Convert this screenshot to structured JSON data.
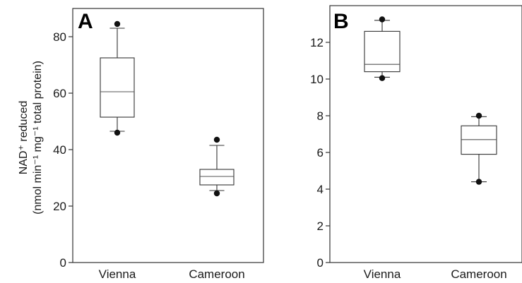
{
  "chart_data": [
    {
      "type": "box",
      "panel_label": "A",
      "categories": [
        "Vienna",
        "Cameroon"
      ],
      "ylabel_line1": "NAD⁺ reduced",
      "ylabel_line2": "(nmol min⁻¹ mg⁻¹ total protein)",
      "ylim": [
        0,
        90
      ],
      "yticks": [
        0,
        20,
        40,
        60,
        80
      ],
      "boxes": [
        {
          "category": "Vienna",
          "whisker_low": 46.5,
          "q1": 51.5,
          "median": 60.5,
          "q3": 72.5,
          "whisker_high": 83,
          "outliers": [
            46,
            84.5
          ]
        },
        {
          "category": "Cameroon",
          "whisker_low": 25.5,
          "q1": 27.5,
          "median": 30.5,
          "q3": 33,
          "whisker_high": 41.5,
          "outliers": [
            24.5,
            43.5
          ]
        }
      ]
    },
    {
      "type": "box",
      "panel_label": "B",
      "categories": [
        "Vienna",
        "Cameroon"
      ],
      "ylim": [
        0,
        14
      ],
      "yticks": [
        0,
        2,
        4,
        6,
        8,
        10,
        12
      ],
      "boxes": [
        {
          "category": "Vienna",
          "whisker_low": 10.1,
          "q1": 10.4,
          "median": 10.8,
          "q3": 12.6,
          "whisker_high": 13.2,
          "outliers": [
            10.05,
            13.25
          ]
        },
        {
          "category": "Cameroon",
          "whisker_low": 4.4,
          "q1": 5.9,
          "median": 6.7,
          "q3": 7.45,
          "whisker_high": 7.95,
          "outliers": [
            4.4,
            8.0
          ]
        }
      ]
    }
  ]
}
